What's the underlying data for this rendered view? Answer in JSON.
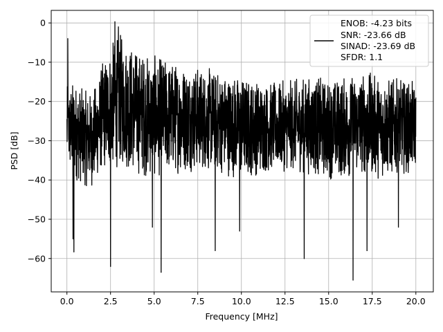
{
  "chart_data": {
    "type": "line",
    "xlabel": "Frequency [MHz]",
    "ylabel": "PSD [dB]",
    "xlim": [
      -0.9,
      21.0
    ],
    "ylim": [
      -68.5,
      3.2
    ],
    "xticks": [
      0.0,
      2.5,
      5.0,
      7.5,
      10.0,
      12.5,
      15.0,
      17.5,
      20.0
    ],
    "xtick_labels": [
      "0.0",
      "2.5",
      "5.0",
      "7.5",
      "10.0",
      "12.5",
      "15.0",
      "17.5",
      "20.0"
    ],
    "yticks": [
      0,
      -10,
      -20,
      -30,
      -40,
      -50,
      -60
    ],
    "ytick_labels": [
      "0",
      "−10",
      "−20",
      "−30",
      "−40",
      "−50",
      "−60"
    ],
    "grid": true,
    "legend_position": "top-right",
    "legend_entries": [
      "ENOB: -4.23 bits",
      "SNR: -23.66 dB",
      "SINAD: -23.69 dB",
      "SFDR: 1.1"
    ],
    "series": [
      {
        "color": "#000000",
        "x_range": [
          0.0,
          20.0
        ],
        "envelope": {
          "x": [
            0.0,
            0.4,
            1.0,
            1.5,
            2.0,
            2.5,
            3.0,
            3.5,
            4.0,
            5.0,
            6.0,
            7.0,
            8.0,
            9.0,
            10.0,
            11.0,
            12.0,
            13.0,
            14.0,
            15.0,
            16.0,
            17.0,
            18.0,
            19.0,
            20.0
          ],
          "upper": [
            -16,
            -14,
            -17,
            -17,
            -10,
            -5,
            -2,
            -4,
            -6,
            -8,
            -9,
            -10,
            -11,
            -12,
            -13,
            -14,
            -15,
            -14,
            -13,
            -14,
            -13,
            -12,
            -13,
            -14,
            -15
          ],
          "lower": [
            -38,
            -40,
            -42,
            -42,
            -38,
            -38,
            -37,
            -38,
            -39,
            -40,
            -39,
            -38,
            -38,
            -39,
            -40,
            -39,
            -38,
            -38,
            -39,
            -40,
            -40,
            -39,
            -40,
            -39,
            -38
          ]
        },
        "peaks": [
          {
            "x": 0.05,
            "y": -4
          },
          {
            "x": 2.75,
            "y": 0.3
          },
          {
            "x": 2.95,
            "y": -1
          }
        ],
        "dips": [
          {
            "x": 0.35,
            "y": -55
          },
          {
            "x": 0.4,
            "y": -58.3
          },
          {
            "x": 2.5,
            "y": -62
          },
          {
            "x": 5.4,
            "y": -63.5
          },
          {
            "x": 4.9,
            "y": -52
          },
          {
            "x": 8.5,
            "y": -58
          },
          {
            "x": 9.9,
            "y": -53
          },
          {
            "x": 13.6,
            "y": -60
          },
          {
            "x": 16.4,
            "y": -65.5
          },
          {
            "x": 17.2,
            "y": -58
          },
          {
            "x": 19.0,
            "y": -52
          }
        ]
      }
    ]
  }
}
